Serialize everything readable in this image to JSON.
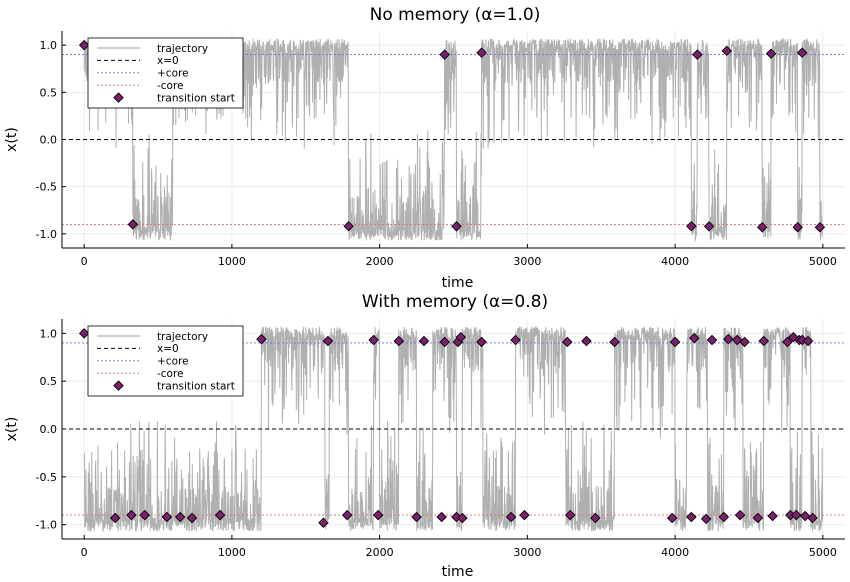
{
  "chart_data": [
    {
      "type": "line",
      "title": "No memory (α=1.0)",
      "xlabel": "time",
      "ylabel": "x(t)",
      "xlim": [
        -150,
        5150
      ],
      "ylim": [
        -1.15,
        1.15
      ],
      "xticks": [
        0,
        1000,
        2000,
        3000,
        4000,
        5000
      ],
      "xtick_labels": [
        "0",
        "1000",
        "2000",
        "3000",
        "4000",
        "5000"
      ],
      "yticks": [
        -1.0,
        -0.5,
        0.0,
        0.5,
        1.0
      ],
      "ytick_labels": [
        "-1.0",
        "-0.5",
        "0.0",
        "0.5",
        "1.0"
      ],
      "grid": true,
      "legend_position": "top-left",
      "legend": [
        "trajectory",
        "x=0",
        "+core",
        "-core",
        "transition start"
      ],
      "reference_lines": {
        "zero": 0.0,
        "plus_core": 0.9,
        "minus_core": -0.9
      },
      "trajectory_segments": [
        {
          "start": 0,
          "end": 330,
          "state": 1
        },
        {
          "start": 330,
          "end": 600,
          "state": -1
        },
        {
          "start": 600,
          "end": 1790,
          "state": 1
        },
        {
          "start": 1790,
          "end": 2440,
          "state": -1
        },
        {
          "start": 2440,
          "end": 2520,
          "state": 1
        },
        {
          "start": 2520,
          "end": 2690,
          "state": -1
        },
        {
          "start": 2690,
          "end": 4110,
          "state": 1
        },
        {
          "start": 4110,
          "end": 4150,
          "state": -1
        },
        {
          "start": 4150,
          "end": 4230,
          "state": 1
        },
        {
          "start": 4230,
          "end": 4350,
          "state": -1
        },
        {
          "start": 4350,
          "end": 4590,
          "state": 1
        },
        {
          "start": 4590,
          "end": 4650,
          "state": -1
        },
        {
          "start": 4650,
          "end": 4830,
          "state": 1
        },
        {
          "start": 4830,
          "end": 4860,
          "state": -1
        },
        {
          "start": 4860,
          "end": 4980,
          "state": 1
        },
        {
          "start": 4980,
          "end": 5000,
          "state": -1
        }
      ],
      "transition_starts": [
        [
          0,
          1.0
        ],
        [
          330,
          -0.9
        ],
        [
          1790,
          -0.92
        ],
        [
          2440,
          0.9
        ],
        [
          2520,
          -0.92
        ],
        [
          2690,
          0.92
        ],
        [
          4110,
          -0.92
        ],
        [
          4150,
          0.9
        ],
        [
          4230,
          -0.92
        ],
        [
          4350,
          0.94
        ],
        [
          4590,
          -0.93
        ],
        [
          4650,
          0.91
        ],
        [
          4830,
          -0.93
        ],
        [
          4860,
          0.92
        ],
        [
          4980,
          -0.93
        ]
      ]
    },
    {
      "type": "line",
      "title": "With memory (α=0.8)",
      "xlabel": "time",
      "ylabel": "x(t)",
      "xlim": [
        -150,
        5150
      ],
      "ylim": [
        -1.15,
        1.15
      ],
      "xticks": [
        0,
        1000,
        2000,
        3000,
        4000,
        5000
      ],
      "xtick_labels": [
        "0",
        "1000",
        "2000",
        "3000",
        "4000",
        "5000"
      ],
      "yticks": [
        -1.0,
        -0.5,
        0.0,
        0.5,
        1.0
      ],
      "ytick_labels": [
        "-1.0",
        "-0.5",
        "0.0",
        "0.5",
        "1.0"
      ],
      "grid": true,
      "legend_position": "top-left",
      "legend": [
        "trajectory",
        "x=0",
        "+core",
        "-core",
        "transition start"
      ],
      "reference_lines": {
        "zero": 0.0,
        "plus_core": 0.9,
        "minus_core": -0.9
      },
      "trajectory_segments": [
        {
          "start": 0,
          "end": 1200,
          "state": -1
        },
        {
          "start": 1200,
          "end": 1630,
          "state": 1
        },
        {
          "start": 1630,
          "end": 1660,
          "state": -1
        },
        {
          "start": 1660,
          "end": 1790,
          "state": 1
        },
        {
          "start": 1790,
          "end": 1960,
          "state": -1
        },
        {
          "start": 1960,
          "end": 2000,
          "state": 1
        },
        {
          "start": 2000,
          "end": 2130,
          "state": -1
        },
        {
          "start": 2130,
          "end": 2250,
          "state": 1
        },
        {
          "start": 2250,
          "end": 2360,
          "state": -1
        },
        {
          "start": 2360,
          "end": 2520,
          "state": 1
        },
        {
          "start": 2520,
          "end": 2560,
          "state": -1
        },
        {
          "start": 2560,
          "end": 2700,
          "state": 1
        },
        {
          "start": 2700,
          "end": 2920,
          "state": -1
        },
        {
          "start": 2920,
          "end": 3260,
          "state": 1
        },
        {
          "start": 3260,
          "end": 3590,
          "state": -1
        },
        {
          "start": 3590,
          "end": 4000,
          "state": 1
        },
        {
          "start": 4000,
          "end": 4080,
          "state": -1
        },
        {
          "start": 4080,
          "end": 4220,
          "state": 1
        },
        {
          "start": 4220,
          "end": 4330,
          "state": -1
        },
        {
          "start": 4330,
          "end": 4460,
          "state": 1
        },
        {
          "start": 4460,
          "end": 4600,
          "state": -1
        },
        {
          "start": 4600,
          "end": 4780,
          "state": 1
        },
        {
          "start": 4780,
          "end": 4860,
          "state": -1
        },
        {
          "start": 4860,
          "end": 4920,
          "state": 1
        },
        {
          "start": 4920,
          "end": 5000,
          "state": -1
        }
      ],
      "transition_starts": [
        [
          0,
          1.0
        ],
        [
          210,
          -0.93
        ],
        [
          320,
          -0.9
        ],
        [
          410,
          -0.9
        ],
        [
          560,
          -0.92
        ],
        [
          650,
          -0.92
        ],
        [
          730,
          -0.93
        ],
        [
          920,
          -0.9
        ],
        [
          1200,
          0.94
        ],
        [
          1620,
          -0.98
        ],
        [
          1650,
          0.92
        ],
        [
          1780,
          -0.9
        ],
        [
          1960,
          0.93
        ],
        [
          1990,
          -0.9
        ],
        [
          2130,
          0.92
        ],
        [
          2250,
          -0.92
        ],
        [
          2300,
          0.92
        ],
        [
          2420,
          -0.92
        ],
        [
          2440,
          0.91
        ],
        [
          2520,
          -0.92
        ],
        [
          2530,
          0.91
        ],
        [
          2550,
          0.96
        ],
        [
          2560,
          -0.93
        ],
        [
          2690,
          0.91
        ],
        [
          2890,
          -0.92
        ],
        [
          2920,
          0.93
        ],
        [
          2980,
          -0.9
        ],
        [
          3270,
          0.91
        ],
        [
          3290,
          -0.9
        ],
        [
          3400,
          0.92
        ],
        [
          3460,
          -0.93
        ],
        [
          3590,
          0.91
        ],
        [
          3980,
          -0.93
        ],
        [
          4000,
          0.91
        ],
        [
          4110,
          -0.92
        ],
        [
          4130,
          0.95
        ],
        [
          4210,
          -0.94
        ],
        [
          4250,
          0.93
        ],
        [
          4330,
          -0.92
        ],
        [
          4360,
          0.94
        ],
        [
          4420,
          0.93
        ],
        [
          4440,
          -0.9
        ],
        [
          4470,
          0.91
        ],
        [
          4560,
          -0.93
        ],
        [
          4600,
          0.92
        ],
        [
          4660,
          -0.91
        ],
        [
          4760,
          0.91
        ],
        [
          4780,
          -0.9
        ],
        [
          4800,
          0.96
        ],
        [
          4820,
          -0.9
        ],
        [
          4840,
          0.93
        ],
        [
          4860,
          0.93
        ],
        [
          4880,
          -0.91
        ],
        [
          4900,
          0.92
        ],
        [
          4930,
          -0.93
        ]
      ]
    }
  ]
}
